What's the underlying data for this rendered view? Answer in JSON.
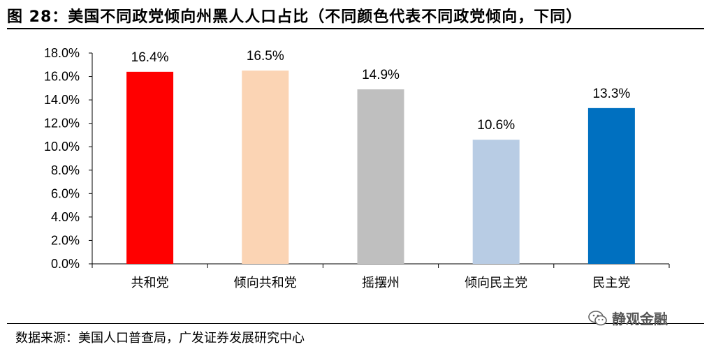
{
  "title": "图 28：美国不同政党倾向州黑人人口占比（不同颜色代表不同政党倾向，下同）",
  "source": "数据来源：美国人口普查局，广发证券发展研究中心",
  "watermark": "静观金融",
  "chart_data": {
    "type": "bar",
    "categories": [
      "共和党",
      "倾向共和党",
      "摇摆州",
      "倾向民主党",
      "民主党"
    ],
    "values": [
      16.4,
      16.5,
      14.9,
      10.6,
      13.3
    ],
    "value_labels": [
      "16.4%",
      "16.5%",
      "14.9%",
      "10.6%",
      "13.3%"
    ],
    "colors": [
      "#ff0000",
      "#fbd4b4",
      "#bfbfbf",
      "#b8cce4",
      "#0070c0"
    ],
    "ylim": [
      0,
      18
    ],
    "yticks": [
      0,
      2,
      4,
      6,
      8,
      10,
      12,
      14,
      16,
      18
    ],
    "ytick_labels": [
      "0.0%",
      "2.0%",
      "4.0%",
      "6.0%",
      "8.0%",
      "10.0%",
      "12.0%",
      "14.0%",
      "16.0%",
      "18.0%"
    ],
    "xlabel": "",
    "ylabel": "",
    "grid": false,
    "legend": "none"
  }
}
